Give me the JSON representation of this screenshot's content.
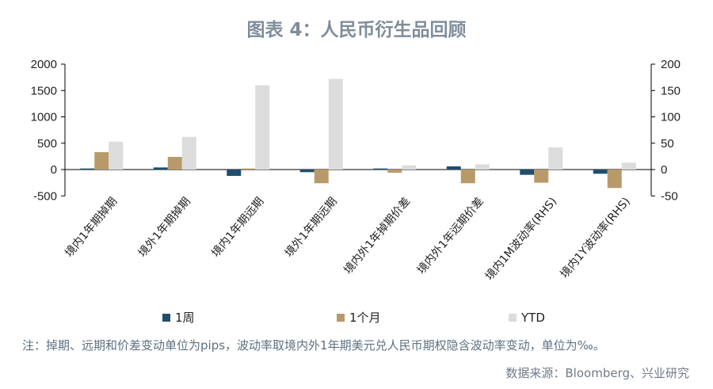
{
  "chart_data": {
    "type": "bar",
    "title": "图表 4：人民币衍生品回顾",
    "categories": [
      "境内1年期掉期",
      "境外1年期掉期",
      "境内1年期远期",
      "境外1年期远期",
      "境内外1年掉期价差",
      "境内外1年远期价差",
      "境内1M波动率(RHS)",
      "境内1Y波动率(RHS)"
    ],
    "series": [
      {
        "name": "1周",
        "color": "#1f4e6e",
        "values": [
          20,
          40,
          -120,
          -50,
          20,
          60,
          -10,
          -8
        ]
      },
      {
        "name": "1个月",
        "color": "#b89a6a",
        "values": [
          330,
          240,
          20,
          -260,
          -60,
          -260,
          -25,
          -35
        ]
      },
      {
        "name": "YTD",
        "color": "#dcdcdc",
        "values": [
          530,
          620,
          1600,
          1720,
          80,
          100,
          42,
          13
        ]
      }
    ],
    "axis_assignment": [
      "left",
      "left",
      "left",
      "left",
      "left",
      "left",
      "right",
      "right"
    ],
    "y_left": {
      "min": -500,
      "max": 2000,
      "ticks": [
        -500,
        0,
        500,
        1000,
        1500,
        2000
      ],
      "tick_labels": [
        "-500",
        "0",
        "500",
        "1000",
        "1500",
        "2000"
      ]
    },
    "y_right": {
      "min": -50,
      "max": 200,
      "ticks": [
        -50,
        0,
        50,
        100,
        150,
        200
      ],
      "tick_labels": [
        "-50",
        "0",
        "50",
        "100",
        "150",
        "200"
      ]
    },
    "grid": false,
    "legend_position": "bottom"
  },
  "note": "注：掉期、远期和价差变动单位为pips，波动率取境内外1年期美元兑人民币期权隐含波动率变动，单位为‰。",
  "source": "数据来源：Bloomberg、兴业研究"
}
